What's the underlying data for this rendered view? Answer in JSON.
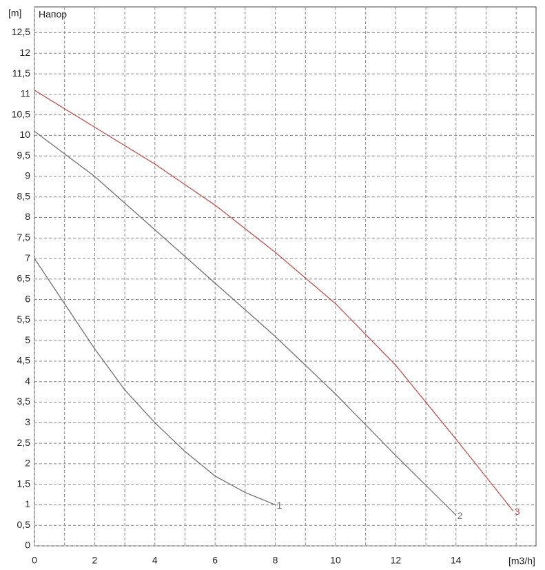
{
  "chart_data": {
    "type": "line",
    "title": "Напор",
    "y_unit": "[m]",
    "x_unit": "[m3/h]",
    "xlim": [
      0,
      16.66
    ],
    "ylim": [
      0,
      13.13
    ],
    "xticks": [
      0,
      2,
      4,
      6,
      8,
      10,
      12,
      14
    ],
    "xminor": [
      1,
      3,
      5,
      7,
      9,
      11,
      13,
      15,
      16
    ],
    "yticks": [
      0,
      {
        "value": 0.5,
        "label": "0,5"
      },
      1,
      {
        "value": 1.5,
        "label": "1,5"
      },
      2,
      {
        "value": 2.5,
        "label": "2,5"
      },
      3,
      {
        "value": 3.5,
        "label": "3,5"
      },
      4,
      {
        "value": 4.5,
        "label": "4,5"
      },
      5,
      {
        "value": 5.5,
        "label": "5,5"
      },
      6,
      {
        "value": 6.5,
        "label": "6,5"
      },
      7,
      {
        "value": 7.5,
        "label": "7,5"
      },
      8,
      {
        "value": 8.5,
        "label": "8,5"
      },
      9,
      {
        "value": 9.5,
        "label": "9,5"
      },
      10,
      {
        "value": 10.5,
        "label": "10,5"
      },
      11,
      {
        "value": 11.5,
        "label": "11,5"
      },
      12,
      {
        "value": 12.5,
        "label": "12,5"
      }
    ],
    "grid": true,
    "series": [
      {
        "name": "1",
        "color": "#707070",
        "x": [
          0,
          1,
          2,
          3,
          4,
          5,
          6,
          7,
          8
        ],
        "values": [
          7,
          5.9,
          4.8,
          3.8,
          3.0,
          2.3,
          1.7,
          1.3,
          1.0
        ]
      },
      {
        "name": "2",
        "color": "#707070",
        "x": [
          0,
          2,
          4,
          6,
          8,
          10,
          12,
          14
        ],
        "values": [
          10.1,
          9.0,
          7.7,
          6.4,
          5.1,
          3.7,
          2.2,
          0.75
        ]
      },
      {
        "name": "3",
        "color": "#c05050",
        "x": [
          0,
          2,
          4,
          6,
          8,
          10,
          12,
          14,
          15.9
        ],
        "values": [
          11.1,
          10.2,
          9.3,
          8.3,
          7.15,
          5.9,
          4.4,
          2.6,
          0.85
        ]
      }
    ]
  }
}
